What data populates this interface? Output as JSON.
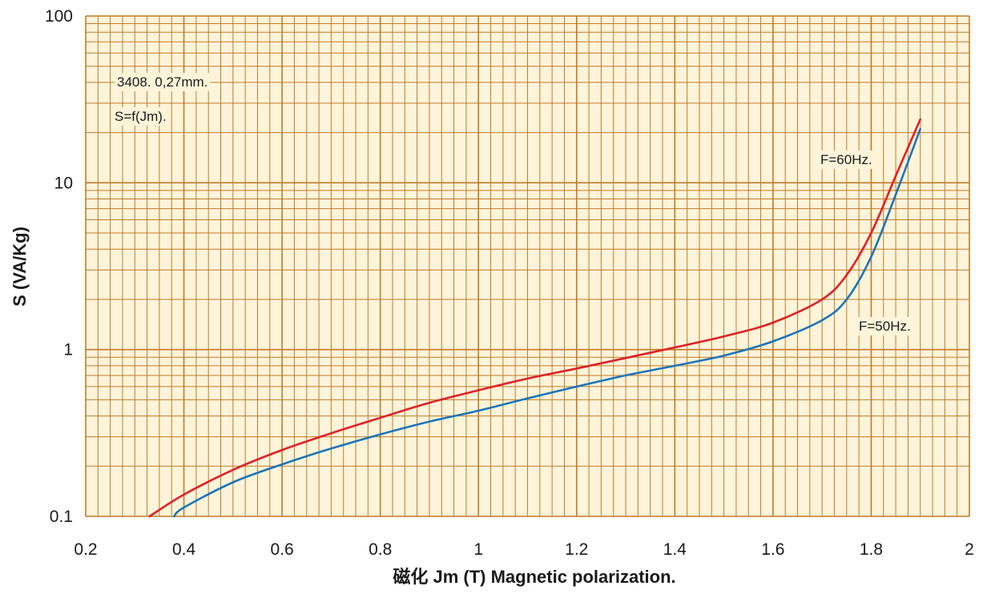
{
  "chart_data": {
    "type": "line",
    "title": "",
    "xlabel": "磁化 Jm (T)  Magnetic polarization.",
    "ylabel": "S (VA/Kg)",
    "xlim": [
      0.2,
      2
    ],
    "ylim": [
      0.1,
      100
    ],
    "yscale": "log",
    "grid": true,
    "x_ticks": [
      "0.2",
      "0.4",
      "0.6",
      "0.8",
      "1",
      "1.2",
      "1.4",
      "1.6",
      "1.8",
      "2"
    ],
    "y_ticks": [
      "0.1",
      "1",
      "10",
      "100"
    ],
    "annotations": [
      "3408. 0,27mm.",
      "S=f(Jm)."
    ],
    "series": [
      {
        "name": "F=60Hz.",
        "x": [
          0.33,
          0.4,
          0.5,
          0.6,
          0.7,
          0.8,
          0.9,
          1.0,
          1.1,
          1.2,
          1.3,
          1.4,
          1.5,
          1.6,
          1.7,
          1.75,
          1.8,
          1.85,
          1.9
        ],
        "y": [
          0.1,
          0.135,
          0.19,
          0.25,
          0.315,
          0.39,
          0.48,
          0.57,
          0.67,
          0.77,
          0.89,
          1.03,
          1.2,
          1.45,
          2.0,
          2.8,
          5.0,
          11.0,
          24.0
        ]
      },
      {
        "name": "F=50Hz.",
        "x": [
          0.38,
          0.4,
          0.5,
          0.6,
          0.7,
          0.8,
          0.9,
          1.0,
          1.1,
          1.2,
          1.3,
          1.4,
          1.5,
          1.6,
          1.7,
          1.75,
          1.8,
          1.85,
          1.9
        ],
        "y": [
          0.1,
          0.113,
          0.16,
          0.205,
          0.255,
          0.31,
          0.37,
          0.43,
          0.51,
          0.6,
          0.7,
          0.8,
          0.92,
          1.12,
          1.5,
          2.0,
          3.6,
          8.5,
          21.0
        ]
      }
    ]
  },
  "colors": {
    "background": "#fdf4d9",
    "grid": "#c07a28",
    "series_60": "#e02127",
    "series_50": "#1b75bb"
  }
}
